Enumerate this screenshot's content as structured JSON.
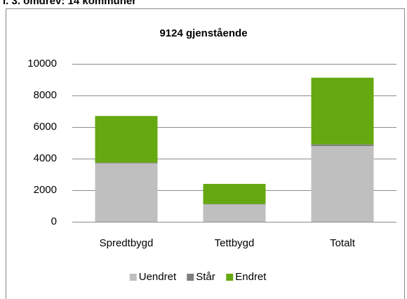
{
  "header": "l. 3. omdrev: 14 kommuner",
  "chart_data": {
    "type": "stacked_bar",
    "title": "9124 gjenstående",
    "categories": [
      "Spredtbygd",
      "Tettbygd",
      "Totalt"
    ],
    "series": [
      {
        "name": "Uendret",
        "color": "#bfbfbf",
        "values": [
          3700,
          1100,
          4800
        ]
      },
      {
        "name": "Står",
        "color": "#7f7f7f",
        "values": [
          50,
          30,
          100
        ]
      },
      {
        "name": "Endret",
        "color": "#66a80f",
        "values": [
          2950,
          1270,
          4224
        ]
      }
    ],
    "ylim": [
      0,
      10000
    ],
    "yticks": [
      0,
      2000,
      4000,
      6000,
      8000,
      10000
    ],
    "grid": true,
    "legend": "bottom"
  }
}
